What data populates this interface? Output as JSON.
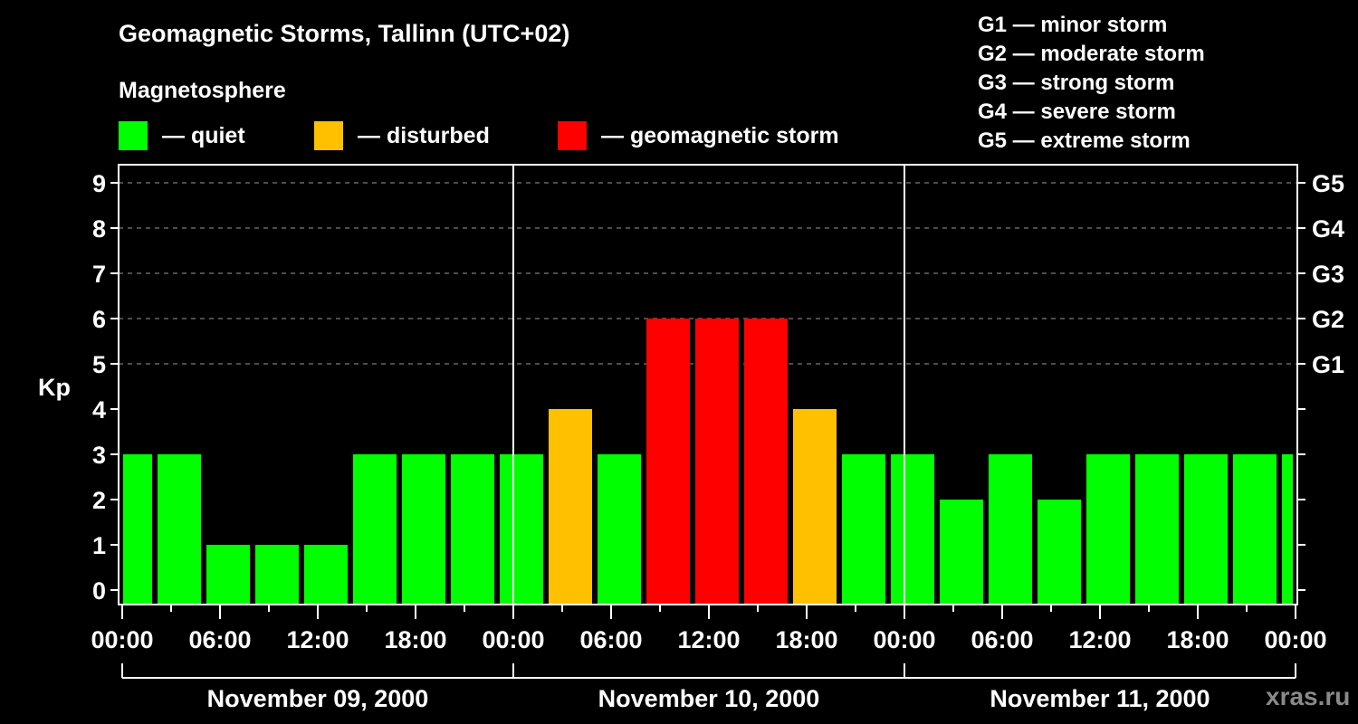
{
  "header": {
    "title": "Geomagnetic Storms, Tallinn (UTC+02)",
    "subtitle": "Magnetosphere"
  },
  "legend": [
    {
      "label": "— quiet",
      "color": "#00ff00"
    },
    {
      "label": "— disturbed",
      "color": "#ffc000"
    },
    {
      "label": "— geomagnetic storm",
      "color": "#ff0000"
    }
  ],
  "g_scale": [
    "G1 — minor storm",
    "G2 — moderate storm",
    "G3 — strong storm",
    "G4 — severe storm",
    "G5 — extreme storm"
  ],
  "watermark": "xras.ru",
  "chart_data": {
    "type": "bar",
    "title": "Geomagnetic Storms, Tallinn (UTC+02)",
    "ylabel": "Kp",
    "ylim": [
      0,
      9
    ],
    "yticks": [
      0,
      1,
      2,
      3,
      4,
      5,
      6,
      7,
      8,
      9
    ],
    "right_axis_labels": [
      {
        "kp": 5,
        "label": "G1"
      },
      {
        "kp": 6,
        "label": "G2"
      },
      {
        "kp": 7,
        "label": "G3"
      },
      {
        "kp": 8,
        "label": "G4"
      },
      {
        "kp": 9,
        "label": "G5"
      }
    ],
    "grid": "dashed horizontal at Kp 5-9",
    "x_tick_labels": [
      "00:00",
      "06:00",
      "12:00",
      "18:00",
      "00:00",
      "06:00",
      "12:00",
      "18:00",
      "00:00",
      "06:00",
      "12:00",
      "18:00",
      "00:00"
    ],
    "dates": [
      "November 09, 2000",
      "November 10, 2000",
      "November 11, 2000"
    ],
    "interval_hours": 3,
    "values": [
      3,
      3,
      1,
      1,
      1,
      3,
      3,
      3,
      3,
      4,
      3,
      6,
      6,
      6,
      4,
      3,
      3,
      2,
      3,
      2,
      3,
      3,
      3,
      3,
      3
    ],
    "colors": {
      "quiet": "#00ff00",
      "disturbed": "#ffc000",
      "storm": "#ff0000"
    },
    "thresholds": {
      "disturbed": 4,
      "storm": 5
    }
  }
}
